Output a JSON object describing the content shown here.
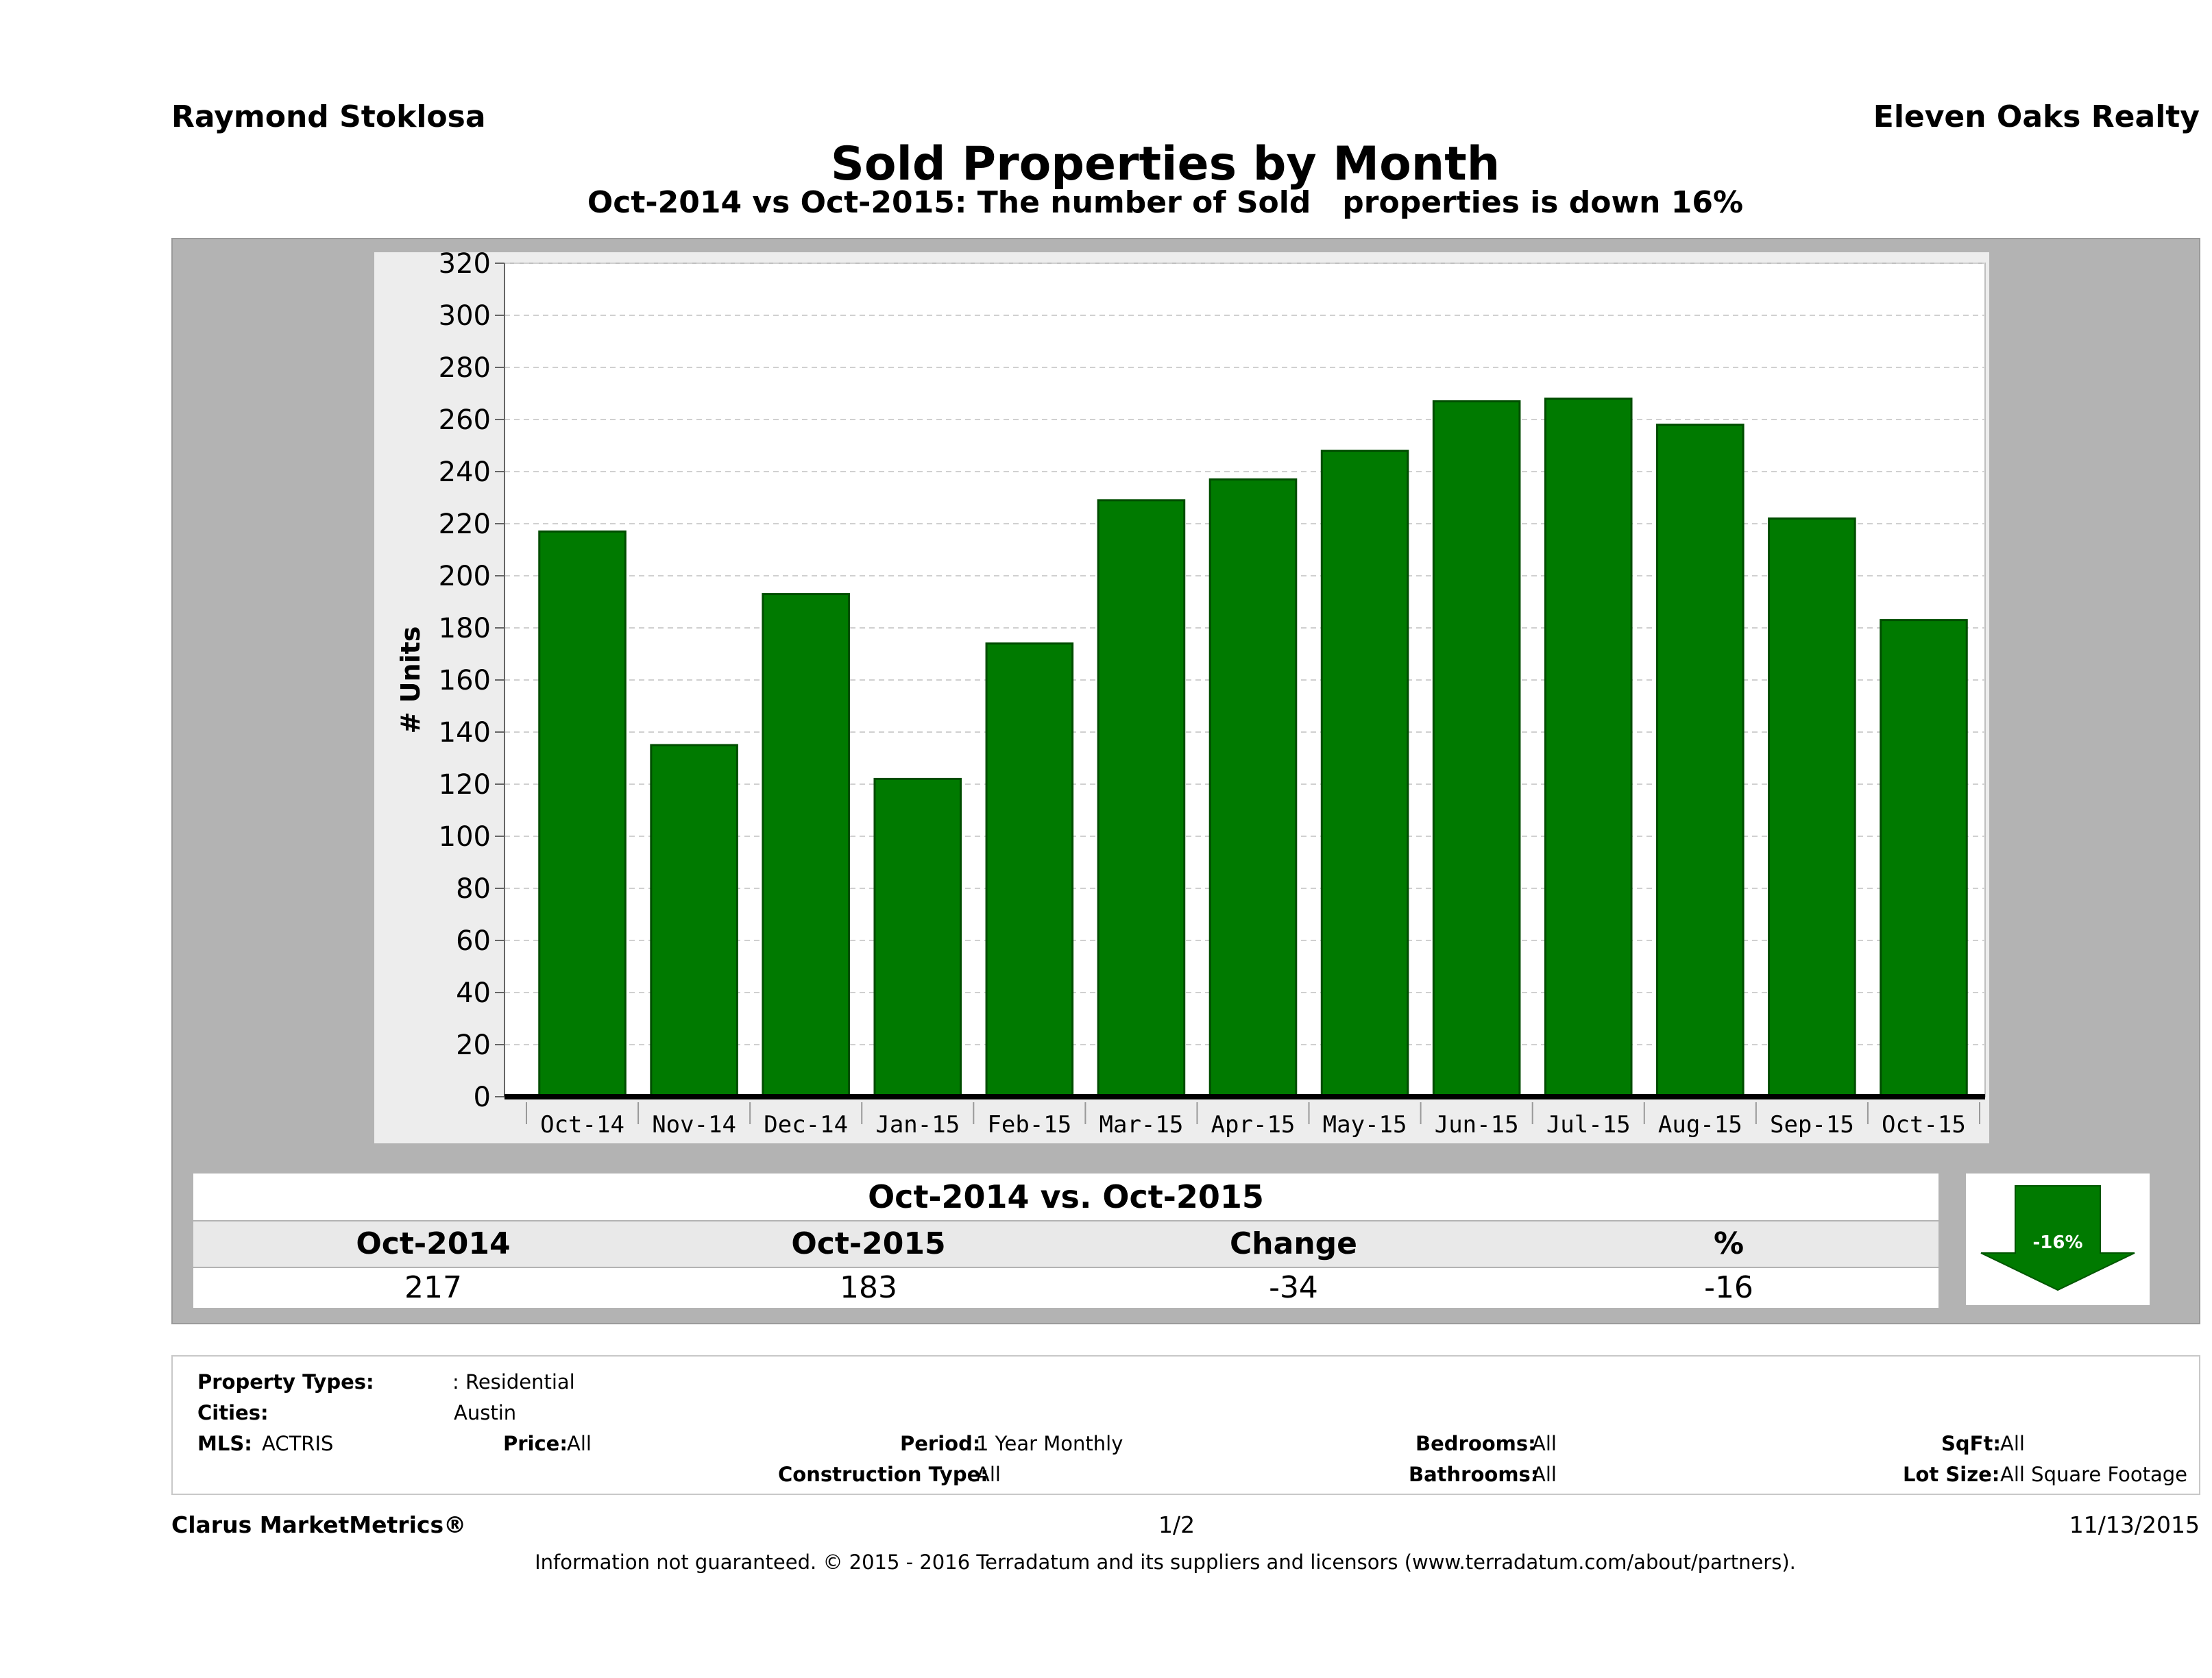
{
  "header": {
    "agent_name": "Raymond Stoklosa",
    "company": "Eleven Oaks Realty",
    "title": "Sold Properties by Month",
    "subtitle": "Oct-2014 vs Oct-2015: The number of Sold   properties is down 16%"
  },
  "chart_data": {
    "type": "bar",
    "categories": [
      "Oct-14",
      "Nov-14",
      "Dec-14",
      "Jan-15",
      "Feb-15",
      "Mar-15",
      "Apr-15",
      "May-15",
      "Jun-15",
      "Jul-15",
      "Aug-15",
      "Sep-15",
      "Oct-15"
    ],
    "values": [
      217,
      135,
      193,
      122,
      174,
      229,
      237,
      248,
      267,
      268,
      258,
      222,
      183
    ],
    "ylabel": "# Units",
    "ylim": [
      0,
      320
    ],
    "yticks": [
      0,
      20,
      40,
      60,
      80,
      100,
      120,
      140,
      160,
      180,
      200,
      220,
      240,
      260,
      280,
      300,
      320
    ],
    "grid": true,
    "colors": {
      "bar": "#007a00",
      "bar_edge": "#004d00",
      "axis": "#000000",
      "grid": "#d0d0d0"
    }
  },
  "summary": {
    "title": "Oct-2014 vs. Oct-2015",
    "headers": [
      "Oct-2014",
      "Oct-2015",
      "Change",
      "%"
    ],
    "values": [
      "217",
      "183",
      "-34",
      "-16"
    ],
    "arrow_label": "-16%",
    "arrow_color": "#007a00"
  },
  "criteria": {
    "property_types_label": "Property Types:",
    "property_types_value": ": Residential",
    "cities_label": "Cities:",
    "cities_value": "Austin",
    "mls_label": "MLS:",
    "mls_value": "ACTRIS",
    "price_label": "Price:",
    "price_value": "All",
    "period_label": "Period:",
    "period_value": "1 Year Monthly",
    "construction_label": "Construction Type:",
    "construction_value": "All",
    "bedrooms_label": "Bedrooms:",
    "bedrooms_value": "All",
    "bathrooms_label": "Bathrooms:",
    "bathrooms_value": "All",
    "sqft_label": "SqFt:",
    "sqft_value": "All",
    "lotsize_label": "Lot Size:",
    "lotsize_value": "All Square Footage"
  },
  "footer": {
    "brand": "Clarus MarketMetrics®",
    "page": "1/2",
    "date": "11/13/2015",
    "disclaimer": "Information not guaranteed. © 2015 - 2016 Terradatum and its suppliers and licensors (www.terradatum.com/about/partners)."
  }
}
